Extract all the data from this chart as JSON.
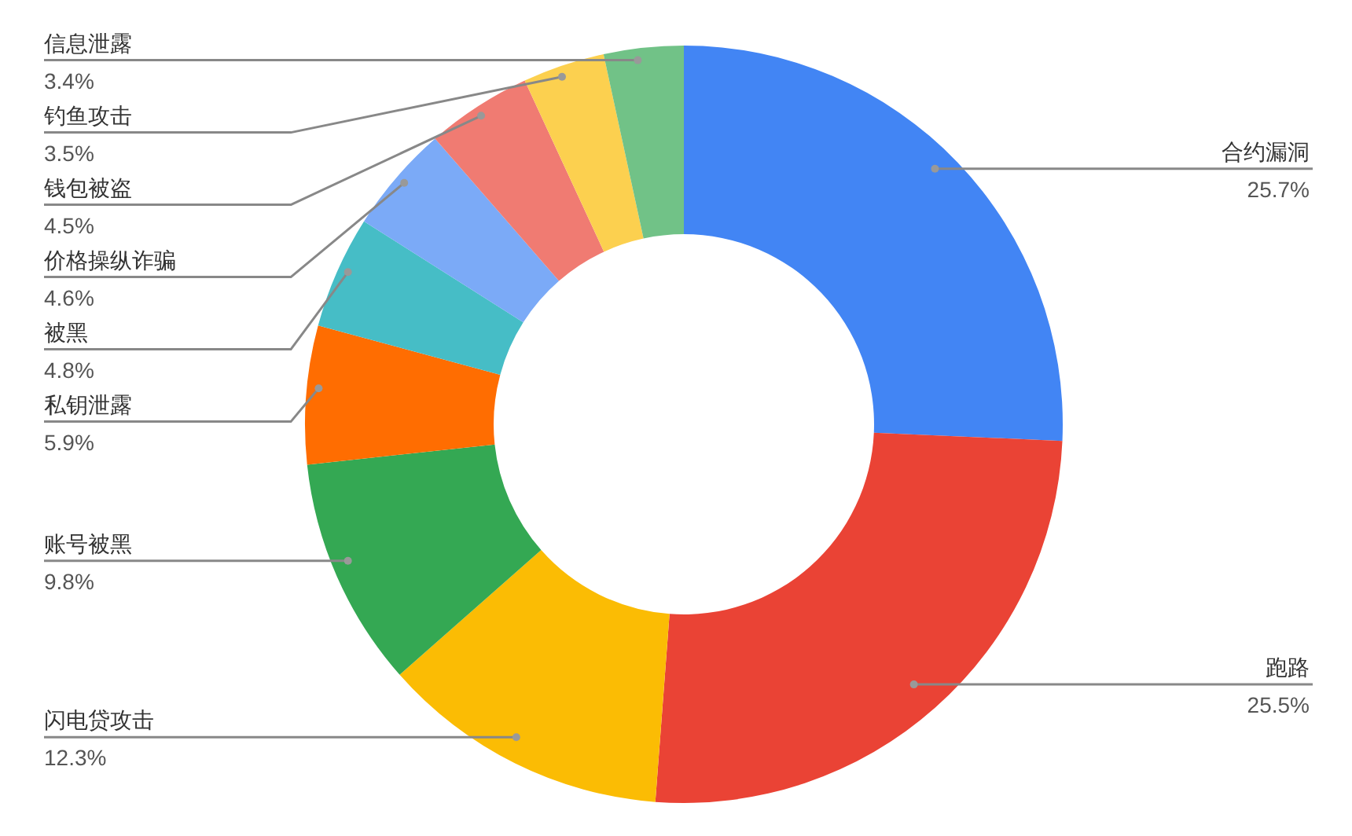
{
  "chart_data": {
    "type": "donut",
    "categories": [
      "合约漏洞",
      "跑路",
      "闪电贷攻击",
      "账号被黑",
      "私钥泄露",
      "被黑",
      "价格操纵诈骗",
      "钱包被盗",
      "钓鱼攻击",
      "信息泄露"
    ],
    "values": [
      25.7,
      25.5,
      12.3,
      9.8,
      5.9,
      4.8,
      4.6,
      4.5,
      3.5,
      3.4
    ],
    "value_labels": [
      "25.7%",
      "25.5%",
      "12.3%",
      "9.8%",
      "5.9%",
      "4.8%",
      "4.6%",
      "4.5%",
      "3.5%",
      "3.4%"
    ],
    "colors": [
      "#4285f4",
      "#ea4335",
      "#fbbc04",
      "#34a853",
      "#ff6d01",
      "#46bdc6",
      "#7baaf7",
      "#f07b72",
      "#fcd04f",
      "#71c287"
    ]
  }
}
